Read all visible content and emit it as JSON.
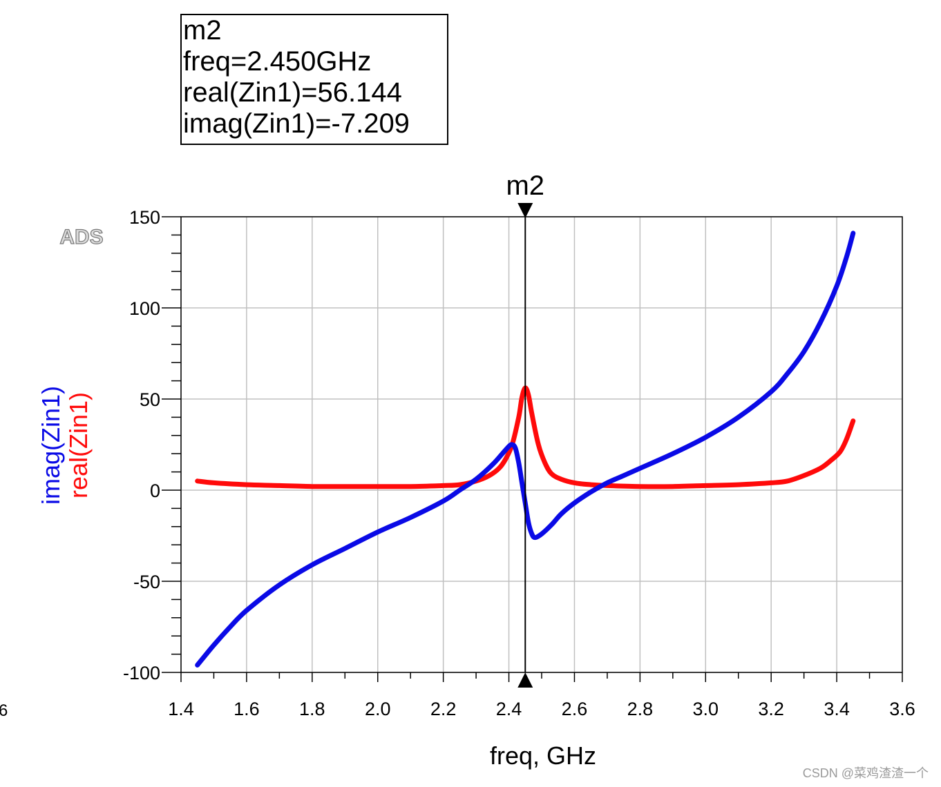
{
  "marker_box": {
    "name": "m2",
    "freq_line": "freq=2.450GHz",
    "real_line": "real(Zin1)=56.144",
    "imag_line": "imag(Zin1)=-7.209"
  },
  "ads_logo": "ADS",
  "edge_fragment": "6",
  "watermark": "CSDN @菜鸡渣渣一个",
  "colors": {
    "imag": "#0a0ae6",
    "real": "#ff0a0a",
    "grid": "#c0c0c0"
  },
  "chart_data": {
    "type": "line",
    "title": "",
    "xlabel": "freq, GHz",
    "ylabels": [
      {
        "text": "imag(Zin1)",
        "series": "imag"
      },
      {
        "text": "real(Zin1)",
        "series": "real"
      }
    ],
    "xlim": [
      1.4,
      3.6
    ],
    "ylim": [
      -100,
      150
    ],
    "xticks": [
      1.4,
      1.6,
      1.8,
      2.0,
      2.2,
      2.4,
      2.6,
      2.8,
      3.0,
      3.2,
      3.4,
      3.6
    ],
    "xtick_labels": [
      "1.4",
      "1.6",
      "1.8",
      "2.0",
      "2.2",
      "2.4",
      "2.6",
      "2.8",
      "3.0",
      "3.2",
      "3.4",
      "3.6"
    ],
    "yticks": [
      150,
      100,
      50,
      0,
      -50,
      -100
    ],
    "ytick_labels": [
      "150",
      "100",
      "50",
      "0",
      "-50",
      "-100"
    ],
    "grid": true,
    "marker": {
      "label": "m2",
      "x": 2.45,
      "real": 56.144,
      "imag": -7.209
    },
    "series": [
      {
        "name": "real(Zin1)",
        "key": "real",
        "color": "#ff0a0a",
        "x": [
          1.45,
          1.5,
          1.6,
          1.7,
          1.8,
          1.9,
          2.0,
          2.1,
          2.2,
          2.25,
          2.3,
          2.34,
          2.37,
          2.39,
          2.41,
          2.43,
          2.44,
          2.45,
          2.46,
          2.47,
          2.49,
          2.51,
          2.53,
          2.56,
          2.6,
          2.65,
          2.7,
          2.8,
          2.9,
          3.0,
          3.1,
          3.2,
          3.25,
          3.3,
          3.35,
          3.38,
          3.41,
          3.43,
          3.45
        ],
        "y": [
          5,
          4,
          3,
          2.5,
          2,
          2,
          2,
          2,
          2.5,
          3,
          5,
          8,
          12,
          17,
          25,
          40,
          51,
          56.1,
          52,
          42,
          25,
          15,
          9,
          6,
          4,
          3,
          2.5,
          2,
          2,
          2.5,
          3,
          4,
          5,
          8,
          12,
          16,
          21,
          28,
          38
        ]
      },
      {
        "name": "imag(Zin1)",
        "key": "imag",
        "color": "#0a0ae6",
        "x": [
          1.45,
          1.5,
          1.55,
          1.6,
          1.7,
          1.8,
          1.9,
          2.0,
          2.1,
          2.2,
          2.25,
          2.3,
          2.35,
          2.38,
          2.4,
          2.41,
          2.42,
          2.43,
          2.44,
          2.45,
          2.46,
          2.47,
          2.48,
          2.5,
          2.53,
          2.56,
          2.6,
          2.65,
          2.7,
          2.75,
          2.8,
          2.9,
          3.0,
          3.1,
          3.2,
          3.25,
          3.3,
          3.35,
          3.4,
          3.43,
          3.45
        ],
        "y": [
          -96,
          -85,
          -75,
          -66,
          -52,
          -41,
          -32,
          -23,
          -15,
          -6,
          0,
          6,
          14,
          20,
          24,
          25,
          23,
          15,
          4,
          -7.2,
          -18,
          -24,
          -26,
          -24,
          -19,
          -13,
          -7,
          -1,
          4,
          8,
          12,
          20,
          29,
          40,
          54,
          64,
          76,
          92,
          112,
          128,
          141
        ]
      }
    ]
  }
}
